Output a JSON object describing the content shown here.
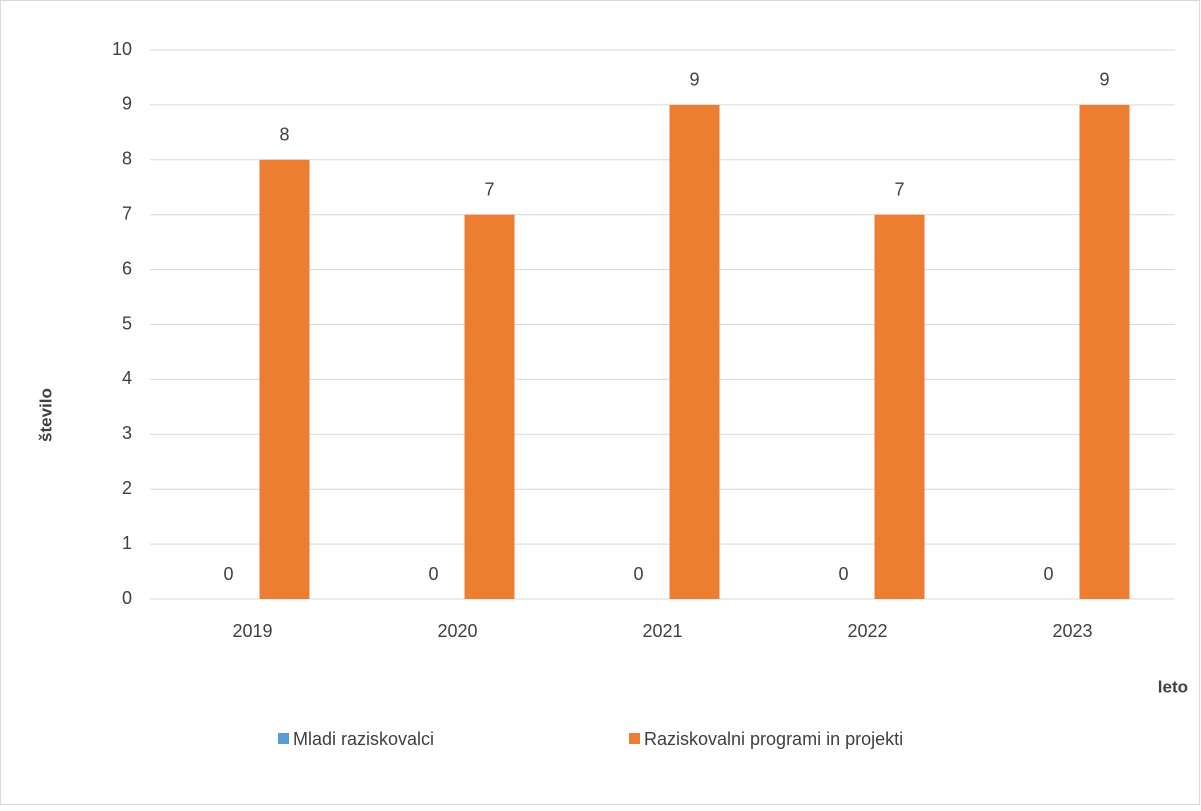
{
  "chart_data": {
    "type": "bar",
    "categories": [
      "2019",
      "2020",
      "2021",
      "2022",
      "2023"
    ],
    "series": [
      {
        "name": "Mladi raziskovalci",
        "color": "#5b9bd5",
        "values": [
          0,
          0,
          0,
          0,
          0
        ]
      },
      {
        "name": "Raziskovalni programi in projekti",
        "color": "#ed7d31",
        "values": [
          8,
          7,
          9,
          7,
          9
        ]
      }
    ],
    "ylabel": "število",
    "xlabel": "leto",
    "ylim": [
      0,
      10
    ],
    "yticks": [
      0,
      1,
      2,
      3,
      4,
      5,
      6,
      7,
      8,
      9,
      10
    ],
    "grid": true,
    "legend": "bottom"
  }
}
